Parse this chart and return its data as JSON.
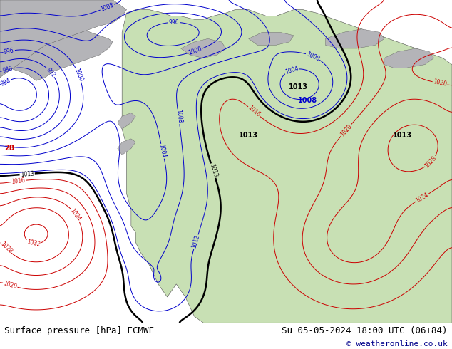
{
  "title_left": "Surface pressure [hPa] ECMWF",
  "title_right": "Su 05-05-2024 18:00 UTC (06+84)",
  "copyright": "© weatheronline.co.uk",
  "fig_width": 6.34,
  "fig_height": 4.9,
  "dpi": 100,
  "font_size_bottom": 9,
  "font_size_copyright": 8,
  "ocean_color": "#dcdce8",
  "green_land_color": "#c8e0b4",
  "gray_land_color": "#b4b4b8",
  "bottom_bar_color": "#dcdcdc",
  "text_color": "#000000",
  "copyright_color": "#00008b"
}
